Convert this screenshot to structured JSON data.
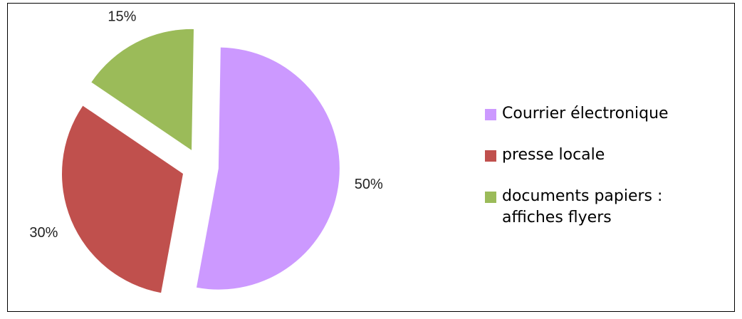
{
  "chart_data": {
    "type": "pie",
    "title": "",
    "slices": [
      {
        "label": "Courrier électronique",
        "value": 50,
        "display": "50%",
        "color": "#cc99ff"
      },
      {
        "label": "presse locale",
        "value": 30,
        "display": "30%",
        "color": "#c0504d"
      },
      {
        "label": "documents papiers : affiches flyers",
        "value": 15,
        "display": "15%",
        "color": "#9bbb59"
      }
    ],
    "exploded": true,
    "legend_position": "right",
    "data_labels": true
  }
}
